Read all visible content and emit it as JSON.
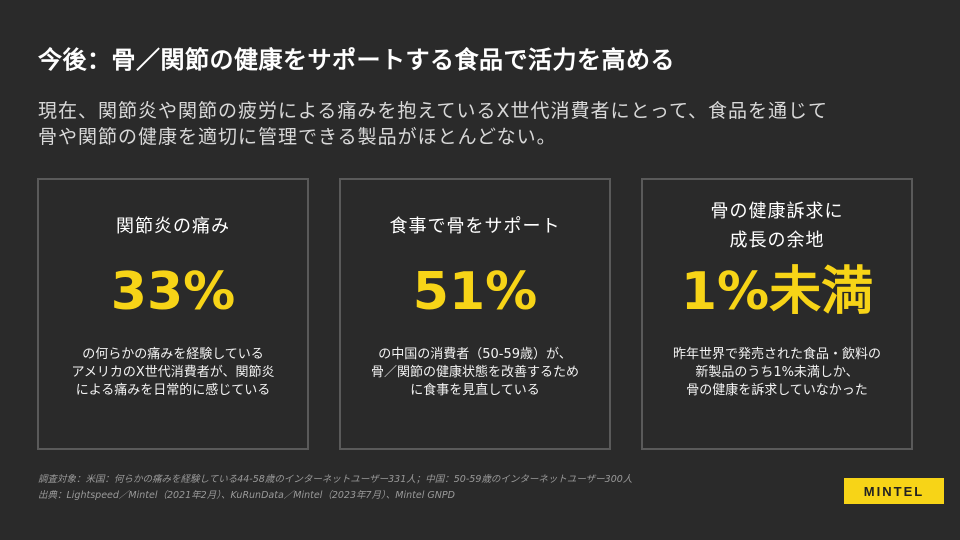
{
  "title": "今後：骨／関節の健康をサポートする食品で活力を高める",
  "subtitle": {
    "line1": "現在、関節炎や関節の疲労による痛みを抱えているX世代消費者にとって、食品を通じて",
    "line2": "骨や関節の健康を適切に管理できる製品がほとんどない。"
  },
  "cards": [
    {
      "heading": [
        "関節炎の痛み"
      ],
      "stat": "33%",
      "description": [
        "の何らかの痛みを経験している",
        "アメリカのX世代消費者が、関節炎",
        "による痛みを日常的に感じている"
      ]
    },
    {
      "heading": [
        "食事で骨をサポート"
      ],
      "stat": "51%",
      "description": [
        "の中国の消費者（50-59歳）が、",
        "骨／関節の健康状態を改善するため",
        "に食事を見直している"
      ]
    },
    {
      "heading": [
        "骨の健康訴求に",
        "成長の余地"
      ],
      "stat": "1%未満",
      "description": [
        "昨年世界で発売された食品・飲料の",
        "新製品のうち1%未満しか、",
        "骨の健康を訴求していなかった"
      ]
    }
  ],
  "footnote": {
    "line1": "調査対象：米国：何らかの痛みを経験している44-58歳のインターネットユーザー331人；中国：50-59歳のインターネットユーザー300人",
    "line2": "出典：Lightspeed／Mintel（2021年2月）、KuRunData／Mintel（2023年7月）、Mintel GNPD"
  },
  "logo": "MINTEL",
  "colors": {
    "background": "#2a2a2a",
    "accent": "#f7d417",
    "card_border": "#5a5a5a"
  }
}
